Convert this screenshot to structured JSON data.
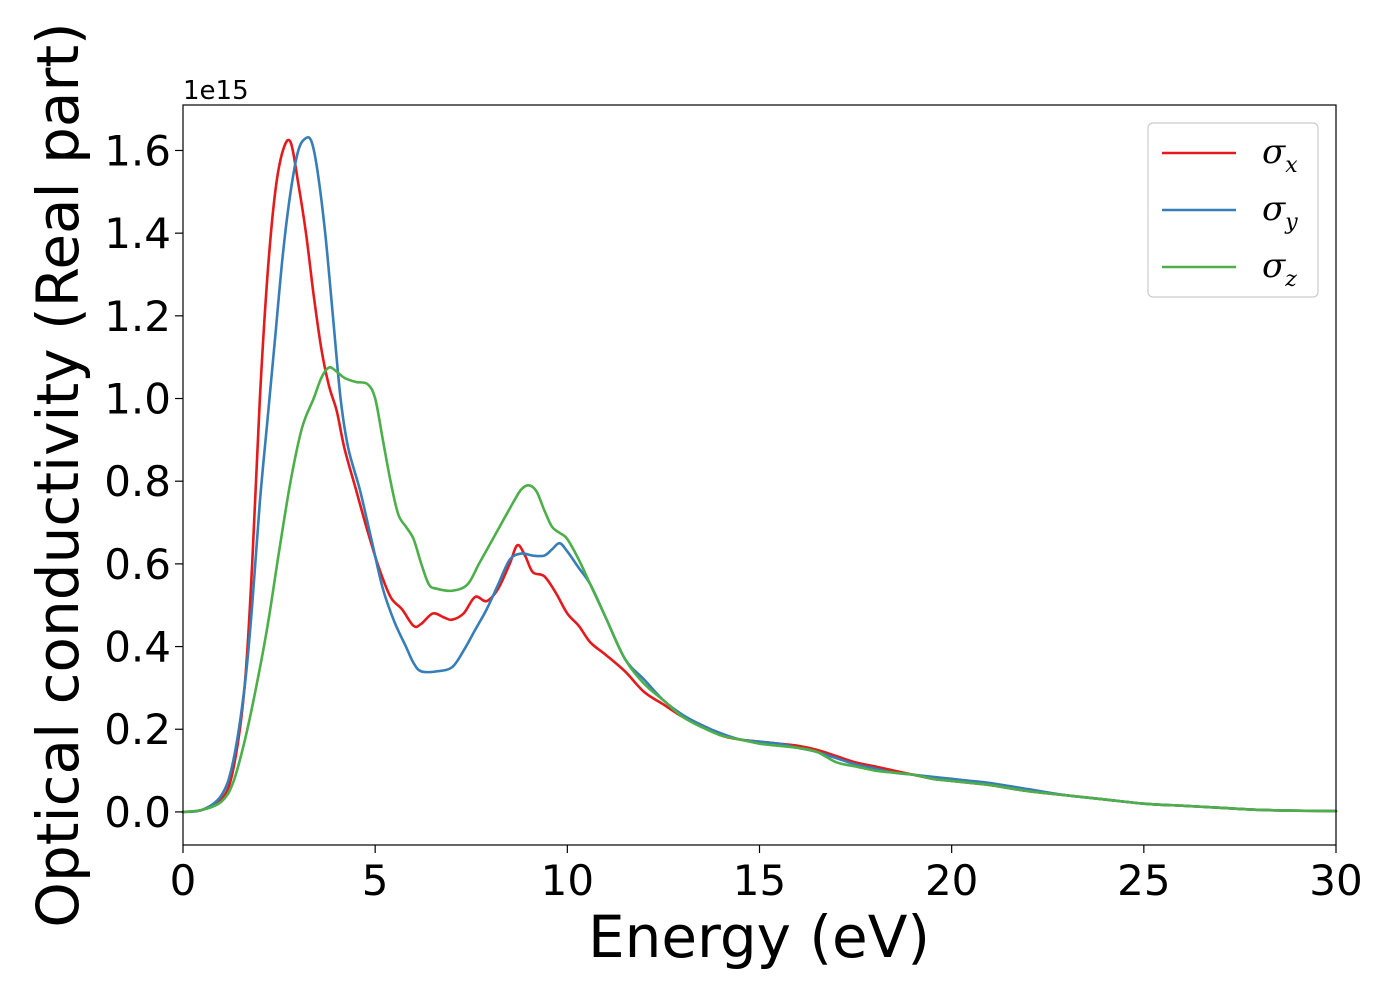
{
  "chart_data": {
    "type": "line",
    "title": "",
    "xlabel": "Energy (eV)",
    "ylabel": "Optical conductivity (Real part)",
    "y_offset_label": "1e15",
    "xlim": [
      0,
      30
    ],
    "ylim": [
      -0.08,
      1.71
    ],
    "x_ticks": [
      0,
      5,
      10,
      15,
      20,
      25,
      30
    ],
    "x_tick_labels": [
      "0",
      "5",
      "10",
      "15",
      "20",
      "25",
      "30"
    ],
    "y_ticks": [
      0.0,
      0.2,
      0.4,
      0.6,
      0.8,
      1.0,
      1.2,
      1.4,
      1.6
    ],
    "y_tick_labels": [
      "0.0",
      "0.2",
      "0.4",
      "0.6",
      "0.8",
      "1.0",
      "1.2",
      "1.4",
      "1.6"
    ],
    "grid": false,
    "legend_position": "top-right",
    "series": [
      {
        "name": "σx",
        "symbol": "σ",
        "subscript": "x",
        "color": "#e41a1c",
        "x": [
          0,
          0.5,
          1.0,
          1.3,
          1.6,
          1.8,
          2.0,
          2.2,
          2.4,
          2.6,
          2.8,
          3.0,
          3.2,
          3.4,
          3.6,
          3.8,
          4.0,
          4.2,
          4.5,
          4.8,
          5.1,
          5.4,
          5.7,
          6.0,
          6.2,
          6.5,
          6.8,
          7.0,
          7.3,
          7.6,
          7.9,
          8.2,
          8.5,
          8.7,
          8.9,
          9.1,
          9.4,
          9.7,
          10.0,
          10.3,
          10.6,
          11.0,
          11.5,
          12.0,
          12.5,
          13.0,
          13.5,
          14.0,
          14.5,
          15.0,
          15.5,
          16.0,
          16.5,
          17.0,
          17.5,
          18.0,
          18.5,
          19.0,
          19.5,
          20.0,
          20.5,
          21.0,
          22.0,
          23.0,
          24.0,
          25.0,
          26.0,
          27.0,
          28.0,
          29.0,
          30.0
        ],
        "y": [
          0.0,
          0.005,
          0.03,
          0.1,
          0.3,
          0.6,
          1.0,
          1.3,
          1.5,
          1.6,
          1.62,
          1.52,
          1.4,
          1.25,
          1.12,
          1.03,
          0.97,
          0.88,
          0.78,
          0.68,
          0.59,
          0.52,
          0.49,
          0.45,
          0.455,
          0.48,
          0.47,
          0.465,
          0.48,
          0.52,
          0.51,
          0.54,
          0.6,
          0.645,
          0.62,
          0.58,
          0.57,
          0.53,
          0.48,
          0.45,
          0.41,
          0.38,
          0.34,
          0.29,
          0.26,
          0.23,
          0.21,
          0.185,
          0.175,
          0.17,
          0.165,
          0.16,
          0.15,
          0.135,
          0.12,
          0.11,
          0.1,
          0.09,
          0.08,
          0.075,
          0.07,
          0.065,
          0.05,
          0.04,
          0.03,
          0.02,
          0.015,
          0.01,
          0.005,
          0.003,
          0.002
        ]
      },
      {
        "name": "σy",
        "symbol": "σ",
        "subscript": "y",
        "color": "#377eb8",
        "x": [
          0,
          0.5,
          1.0,
          1.3,
          1.6,
          1.8,
          2.0,
          2.2,
          2.4,
          2.6,
          2.8,
          3.0,
          3.2,
          3.35,
          3.5,
          3.7,
          3.9,
          4.1,
          4.3,
          4.6,
          4.9,
          5.2,
          5.5,
          5.8,
          6.0,
          6.2,
          6.6,
          7.0,
          7.3,
          7.6,
          7.9,
          8.2,
          8.5,
          8.8,
          9.1,
          9.4,
          9.6,
          9.8,
          10.0,
          10.3,
          10.6,
          11.0,
          11.5,
          12.0,
          12.5,
          13.0,
          13.5,
          14.0,
          14.5,
          15.0,
          15.5,
          16.0,
          16.5,
          17.0,
          17.5,
          18.0,
          18.5,
          19.0,
          19.5,
          20.0,
          20.5,
          21.0,
          22.0,
          23.0,
          24.0,
          25.0,
          26.0,
          27.0,
          28.0,
          29.0,
          30.0
        ],
        "y": [
          0.0,
          0.005,
          0.04,
          0.12,
          0.3,
          0.5,
          0.75,
          0.95,
          1.15,
          1.35,
          1.5,
          1.6,
          1.63,
          1.62,
          1.55,
          1.4,
          1.2,
          1.0,
          0.88,
          0.78,
          0.66,
          0.54,
          0.46,
          0.4,
          0.36,
          0.34,
          0.34,
          0.35,
          0.39,
          0.44,
          0.49,
          0.55,
          0.61,
          0.625,
          0.62,
          0.62,
          0.635,
          0.65,
          0.63,
          0.59,
          0.55,
          0.47,
          0.37,
          0.32,
          0.27,
          0.235,
          0.21,
          0.19,
          0.175,
          0.17,
          0.165,
          0.155,
          0.145,
          0.13,
          0.115,
          0.105,
          0.095,
          0.09,
          0.085,
          0.08,
          0.075,
          0.07,
          0.055,
          0.04,
          0.03,
          0.02,
          0.015,
          0.01,
          0.005,
          0.003,
          0.002
        ]
      },
      {
        "name": "σz",
        "symbol": "σ",
        "subscript": "z",
        "color": "#4daf4a",
        "x": [
          0,
          0.5,
          1.0,
          1.3,
          1.6,
          1.9,
          2.2,
          2.5,
          2.8,
          3.1,
          3.4,
          3.6,
          3.8,
          4.0,
          4.2,
          4.5,
          4.8,
          5.0,
          5.2,
          5.4,
          5.6,
          5.8,
          6.0,
          6.2,
          6.4,
          6.6,
          7.0,
          7.4,
          7.7,
          8.0,
          8.3,
          8.6,
          8.8,
          9.0,
          9.2,
          9.4,
          9.6,
          9.8,
          10.0,
          10.3,
          10.6,
          11.0,
          11.5,
          12.0,
          12.5,
          13.0,
          13.5,
          14.0,
          14.5,
          15.0,
          15.5,
          16.0,
          16.5,
          17.0,
          17.5,
          18.0,
          18.5,
          19.0,
          19.5,
          20.0,
          20.5,
          21.0,
          22.0,
          23.0,
          24.0,
          25.0,
          26.0,
          27.0,
          28.0,
          29.0,
          30.0
        ],
        "y": [
          0.0,
          0.005,
          0.025,
          0.07,
          0.17,
          0.3,
          0.45,
          0.63,
          0.8,
          0.93,
          1.0,
          1.05,
          1.075,
          1.065,
          1.05,
          1.04,
          1.035,
          1.0,
          0.9,
          0.8,
          0.72,
          0.69,
          0.66,
          0.6,
          0.55,
          0.54,
          0.535,
          0.55,
          0.6,
          0.65,
          0.7,
          0.75,
          0.78,
          0.79,
          0.775,
          0.73,
          0.69,
          0.675,
          0.66,
          0.61,
          0.55,
          0.47,
          0.37,
          0.31,
          0.27,
          0.23,
          0.205,
          0.185,
          0.175,
          0.165,
          0.16,
          0.155,
          0.145,
          0.12,
          0.11,
          0.1,
          0.095,
          0.09,
          0.08,
          0.075,
          0.07,
          0.065,
          0.05,
          0.04,
          0.03,
          0.02,
          0.015,
          0.01,
          0.005,
          0.003,
          0.002
        ]
      }
    ]
  }
}
